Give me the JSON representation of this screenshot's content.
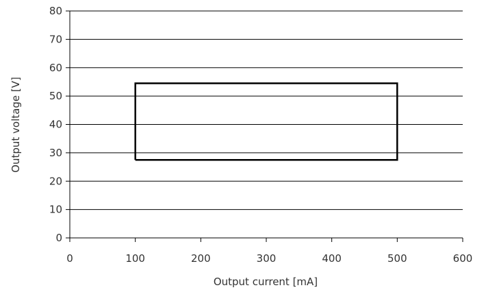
{
  "chart_data": {
    "type": "line",
    "title": "",
    "xlabel": "Output current [mA]",
    "ylabel": "Output voltage [V]",
    "xlim": [
      0,
      600
    ],
    "ylim": [
      0,
      80
    ],
    "x_ticks": [
      0,
      100,
      200,
      300,
      400,
      500,
      600
    ],
    "y_ticks": [
      0,
      10,
      20,
      30,
      40,
      50,
      60,
      70,
      80
    ],
    "grid": "horizontal",
    "legend": "none",
    "series": [
      {
        "x": [
          100,
          500,
          500,
          100,
          100
        ],
        "y": [
          27.5,
          27.5,
          54.5,
          54.5,
          27.5
        ]
      }
    ]
  }
}
